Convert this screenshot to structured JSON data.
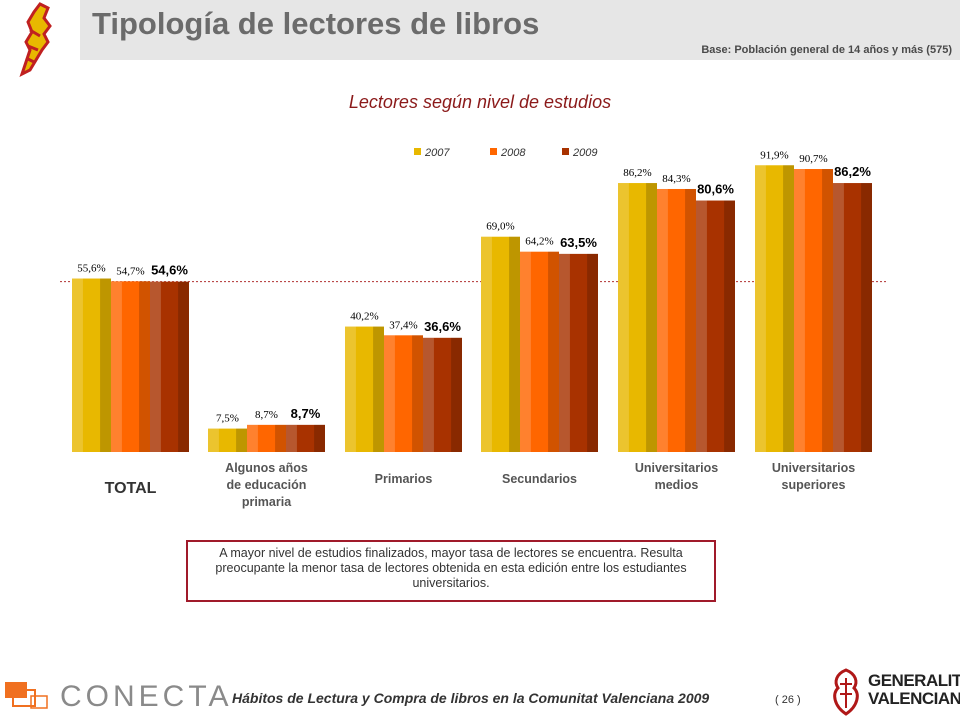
{
  "header": {
    "title": "Tipología de lectores de libros",
    "base": "Base: Población general de 14 años y más (575)"
  },
  "chart_data": {
    "type": "bar",
    "title": "Lectores según nivel de estudios",
    "categories": [
      "TOTAL",
      "Algunos años de educación primaria",
      "Primarios",
      "Secundarios",
      "Universitarios medios",
      "Universitarios superiores"
    ],
    "series": [
      {
        "name": "2007",
        "values": [
          55.6,
          7.5,
          40.2,
          69.0,
          86.2,
          91.9
        ],
        "labels": [
          "55,6%",
          "7,5%",
          "40,2%",
          "69,0%",
          "86,2%",
          "91,9%"
        ],
        "color": "#e8b800"
      },
      {
        "name": "2008",
        "values": [
          54.7,
          8.7,
          37.4,
          64.2,
          84.3,
          90.7
        ],
        "labels": [
          "54,7%",
          "8,7%",
          "37,4%",
          "64,2%",
          "84,3%",
          "90,7%"
        ],
        "color": "#ff6600"
      },
      {
        "name": "2009",
        "values": [
          54.6,
          8.7,
          36.6,
          63.5,
          80.6,
          86.2
        ],
        "labels": [
          "54,6%",
          "8,7%",
          "36,6%",
          "63,5%",
          "80,6%",
          "86,2%"
        ],
        "color": "#a83200"
      }
    ],
    "reference_value": 54.6,
    "ylim": [
      0,
      100
    ],
    "grid": false,
    "legend_position": "top"
  },
  "note": "A mayor nivel de estudios finalizados, mayor tasa de lectores se encuentra. Resulta preocupante la menor tasa de lectores obtenida en esta edición entre los estudiantes universitarios.",
  "footer": {
    "text": "Hábitos de Lectura y Compra de libros en la Comunitat Valenciana 2009",
    "page": "( 26 )",
    "conecta_logo": "CONECTA",
    "gv_logo_line1": "GENERALITAT",
    "gv_logo_line2": "VALENCIANA"
  }
}
